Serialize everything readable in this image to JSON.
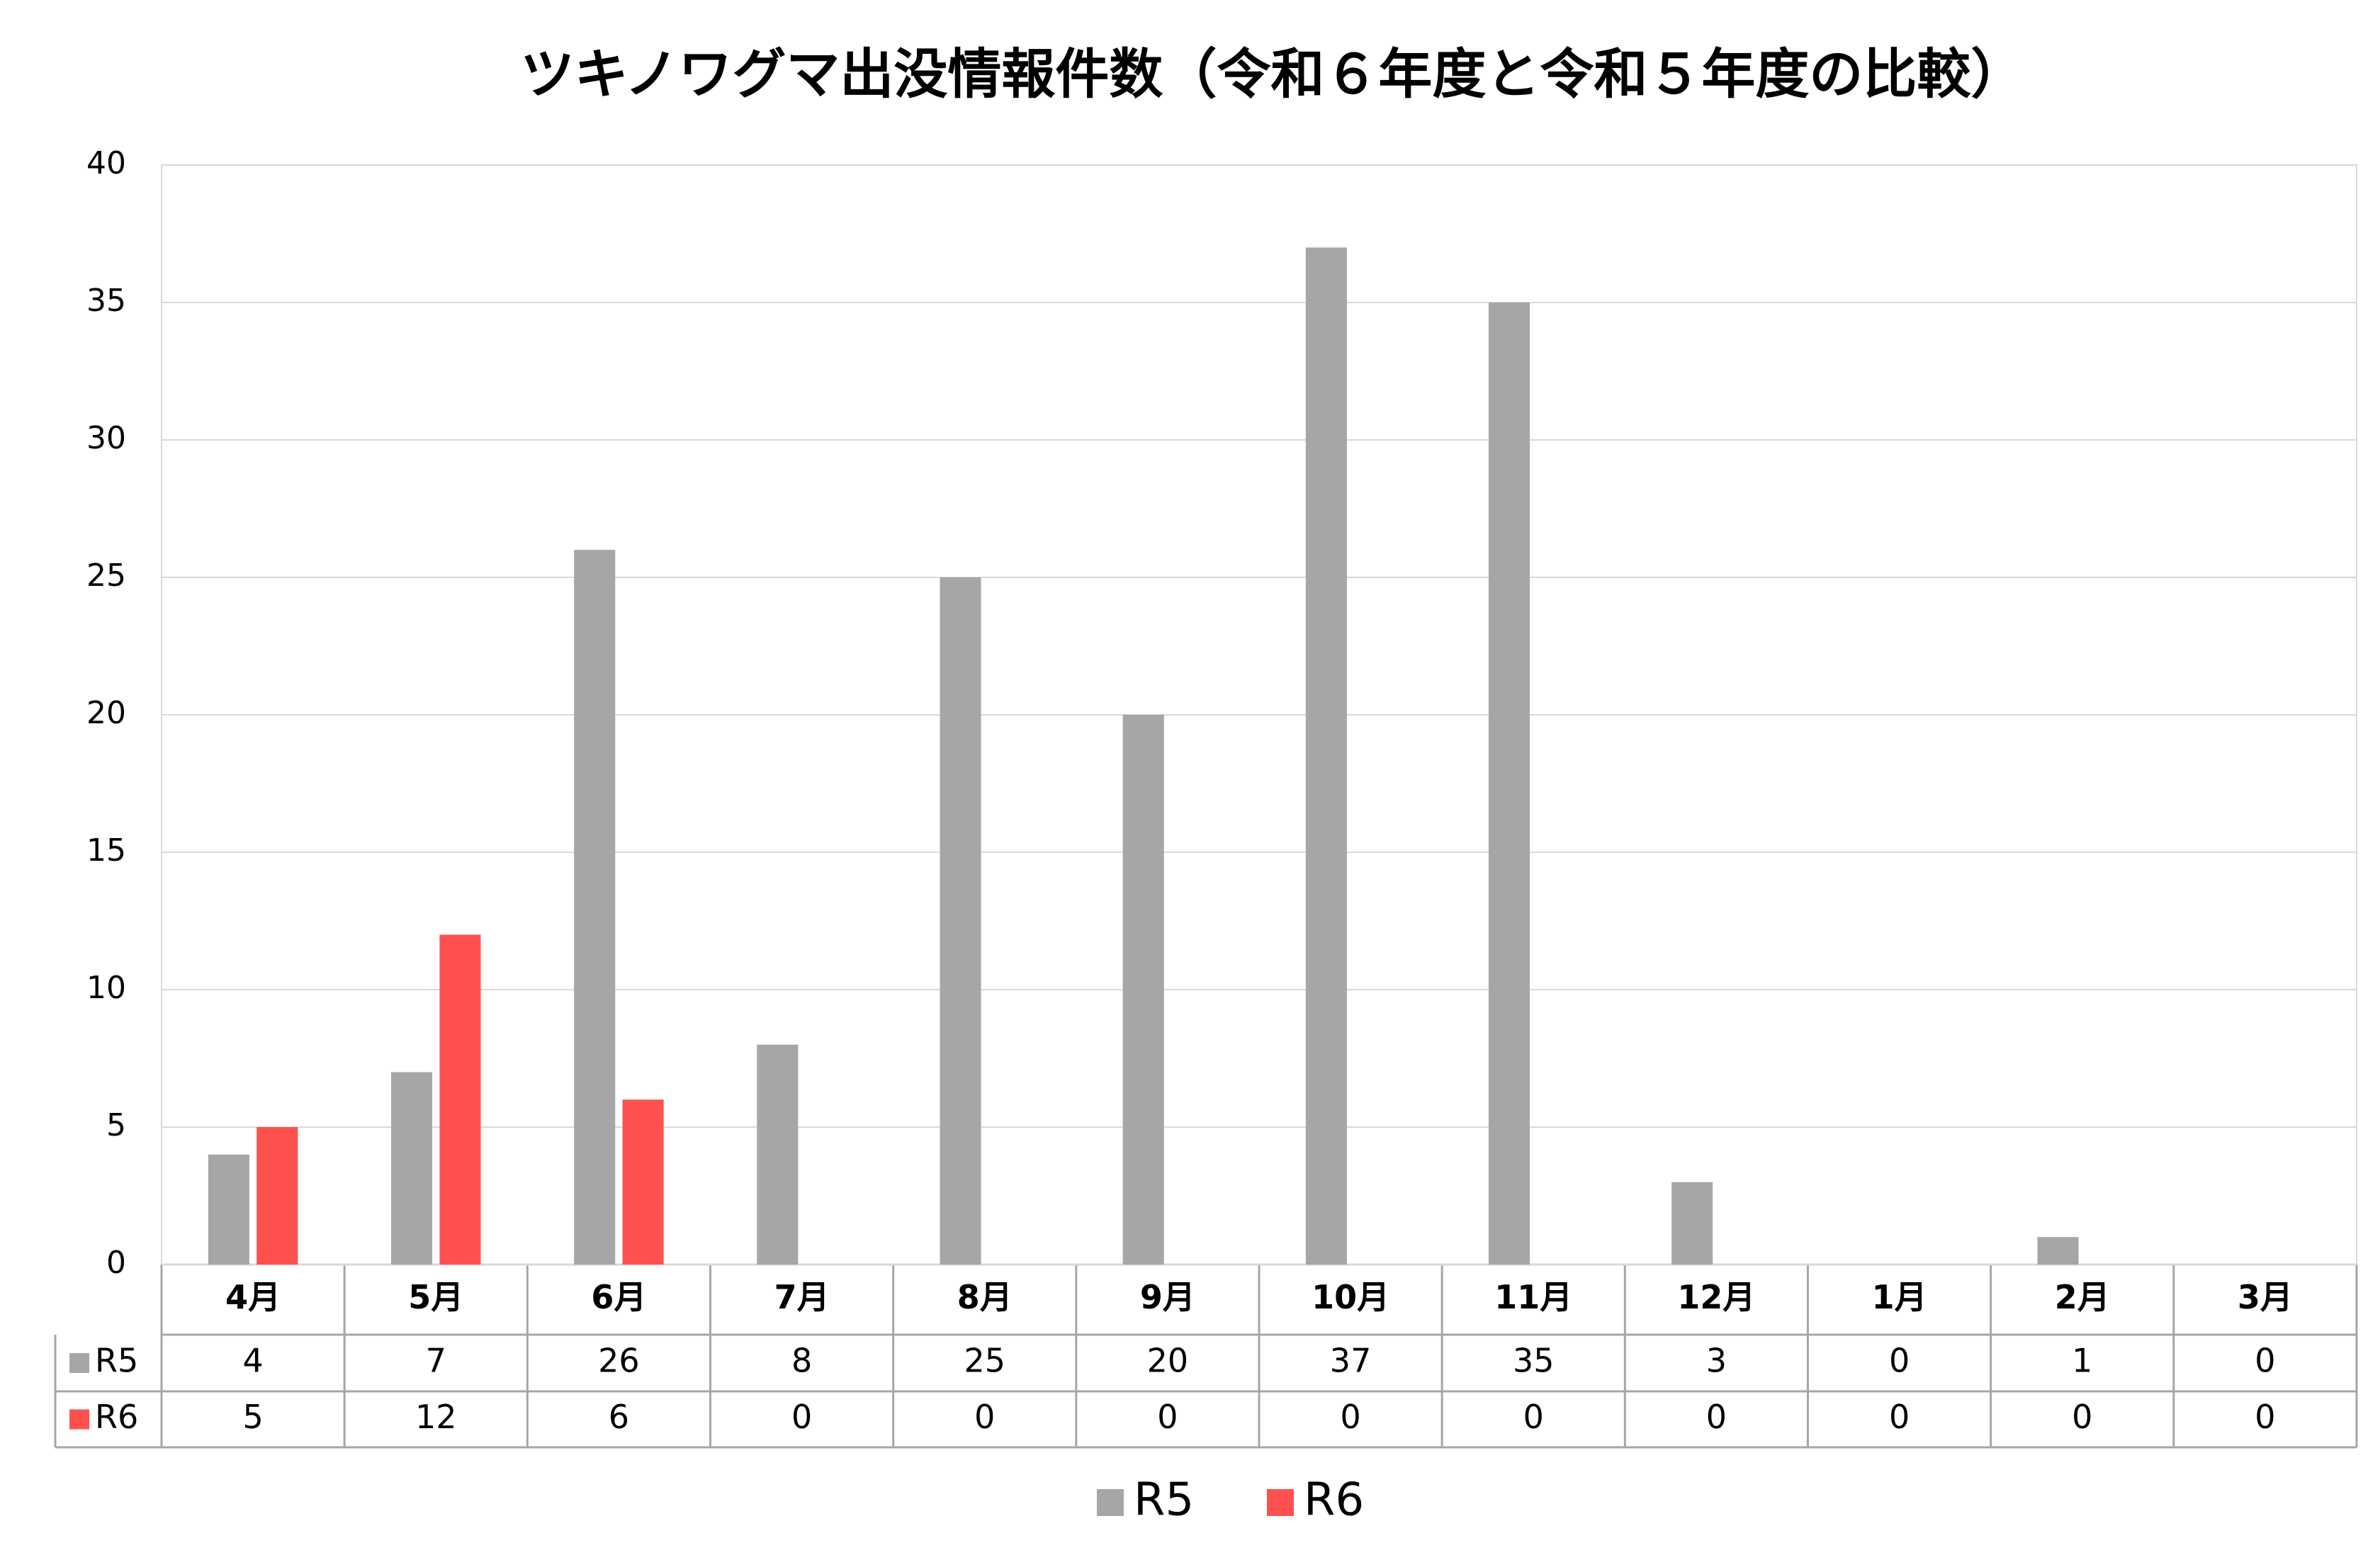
{
  "chart_data": {
    "type": "bar",
    "title": "ツキノワグマ出没情報件数（令和６年度と令和５年度の比較）",
    "categories": [
      "4月",
      "5月",
      "6月",
      "7月",
      "8月",
      "9月",
      "10月",
      "11月",
      "12月",
      "1月",
      "2月",
      "3月"
    ],
    "series": [
      {
        "name": "R5",
        "color": "#a6a6a6",
        "values": [
          4,
          7,
          26,
          8,
          25,
          20,
          37,
          35,
          3,
          0,
          1,
          0
        ]
      },
      {
        "name": "R6",
        "color": "#ff5050",
        "values": [
          5,
          12,
          6,
          0,
          0,
          0,
          0,
          0,
          0,
          0,
          0,
          0
        ]
      }
    ],
    "ylim": [
      0,
      40
    ],
    "yticks": [
      0,
      5,
      10,
      15,
      20,
      25,
      30,
      35,
      40
    ],
    "grid": true,
    "legend": "bottom"
  }
}
